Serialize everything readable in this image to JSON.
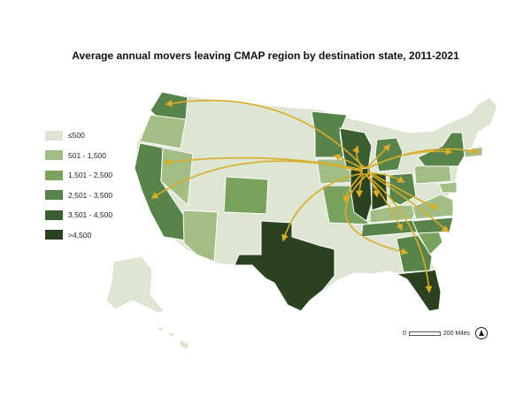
{
  "title": "Average annual movers leaving CMAP region by destination state, 2011-2021",
  "legend": [
    {
      "label": "≤500",
      "color": "#dfe5d3"
    },
    {
      "label": "501 - 1,500",
      "color": "#a3be84"
    },
    {
      "label": "1,501 - 2,500",
      "color": "#7aa25f"
    },
    {
      "label": "2,501 - 3,500",
      "color": "#58844a"
    },
    {
      "label": "3,501 - 4,500",
      "color": "#3c5f31"
    },
    {
      "label": ">4,500",
      "color": "#2b4220"
    }
  ],
  "scale": {
    "start": "0",
    "end": "200 Miles"
  },
  "arrow_color": "#d8ad2a",
  "state_classes": {
    "WA": "2,501 - 3,500",
    "OR": "501 - 1,500",
    "CA": "2,501 - 3,500",
    "NV": "501 - 1,500",
    "AZ": "501 - 1,500",
    "CO": "1,501 - 2,500",
    "TX": ">4,500",
    "MN": "2,501 - 3,500",
    "WI": "3,501 - 4,500",
    "IA": "501 - 1,500",
    "MO": "1,501 - 2,500",
    "IL": ">4,500",
    "IN": ">4,500",
    "MI": "2,501 - 3,500",
    "OH": "2,501 - 3,500",
    "TN": "2,501 - 3,500",
    "KY": "501 - 1,500",
    "GA": "2,501 - 3,500",
    "FL": ">4,500",
    "NC": "2,501 - 3,500",
    "SC": "1,501 - 2,500",
    "VA": "501 - 1,500",
    "NY": "2,501 - 3,500",
    "PA": "501 - 1,500",
    "MA": "501 - 1,500",
    "MD": "501 - 1,500"
  }
}
